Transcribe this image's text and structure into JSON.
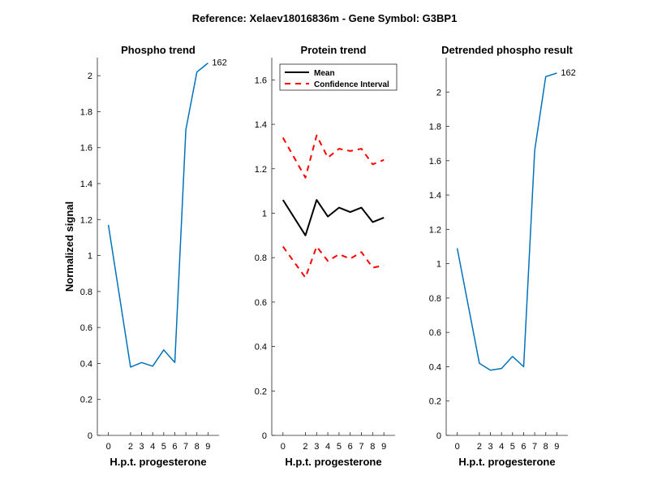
{
  "figure": {
    "title": "Reference:  Xelaev18016836m - Gene Symbol:  G3BP1"
  },
  "colors": {
    "phospho": "#0072BD",
    "mean": "#000000",
    "ci": "#FF0000",
    "axis": "#262626"
  },
  "chart_data": [
    {
      "type": "line",
      "title": "Phospho trend",
      "xlabel": "H.p.t. progesterone",
      "ylabel": "Normalized signal",
      "x": [
        0,
        2,
        3,
        4,
        5,
        6,
        7,
        8,
        9
      ],
      "xticks": [
        "0",
        "2",
        "3",
        "4",
        "5",
        "6",
        "7",
        "8",
        "9"
      ],
      "ylim": [
        0,
        2.1
      ],
      "yticks": [
        "0",
        "0.2",
        "0.4",
        "0.6",
        "0.8",
        "1",
        "1.2",
        "1.4",
        "1.6",
        "1.8",
        "2"
      ],
      "series": [
        {
          "values": [
            1.17,
            0.38,
            0.405,
            0.385,
            0.475,
            0.405,
            1.7,
            2.02,
            2.07
          ]
        }
      ],
      "annotation": "162",
      "grid": false
    },
    {
      "type": "line",
      "title": "Protein trend",
      "xlabel": "H.p.t. progesterone",
      "ylabel": "",
      "x": [
        0,
        2,
        3,
        4,
        5,
        6,
        7,
        8,
        9
      ],
      "xticks": [
        "0",
        "2",
        "3",
        "4",
        "5",
        "6",
        "7",
        "8",
        "9"
      ],
      "ylim": [
        0,
        1.7
      ],
      "yticks": [
        "0",
        "0.2",
        "0.4",
        "0.6",
        "0.8",
        "1",
        "1.2",
        "1.4",
        "1.6"
      ],
      "series": [
        {
          "name": "Mean",
          "values": [
            1.06,
            0.9,
            1.06,
            0.985,
            1.025,
            1.005,
            1.025,
            0.96,
            0.98
          ]
        },
        {
          "name": "Confidence Interval",
          "values": [
            1.34,
            1.16,
            1.35,
            1.25,
            1.29,
            1.28,
            1.29,
            1.22,
            1.24
          ]
        },
        {
          "values": [
            0.85,
            0.71,
            0.85,
            0.785,
            0.815,
            0.795,
            0.825,
            0.755,
            0.765
          ]
        }
      ],
      "legend": "top-left",
      "grid": false
    },
    {
      "type": "line",
      "title": "Detrended phospho result",
      "xlabel": "H.p.t. progesterone",
      "ylabel": "",
      "x": [
        0,
        2,
        3,
        4,
        5,
        6,
        7,
        8,
        9
      ],
      "xticks": [
        "0",
        "2",
        "3",
        "4",
        "5",
        "6",
        "7",
        "8",
        "9"
      ],
      "ylim": [
        0,
        2.2
      ],
      "yticks": [
        "0",
        "0.2",
        "0.4",
        "0.6",
        "0.8",
        "1",
        "1.2",
        "1.4",
        "1.6",
        "1.8",
        "2"
      ],
      "series": [
        {
          "values": [
            1.09,
            0.42,
            0.38,
            0.39,
            0.46,
            0.4,
            1.66,
            2.09,
            2.11
          ]
        }
      ],
      "annotation": "162",
      "grid": false
    }
  ]
}
